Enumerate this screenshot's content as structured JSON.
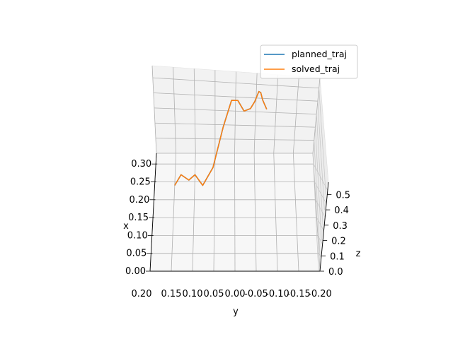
{
  "chart_data": {
    "type": "line",
    "projection": "3d",
    "title": "",
    "xlabel": "x",
    "ylabel": "y",
    "zlabel": "z",
    "x_ticks": [
      "0.00",
      "0.05",
      "0.10",
      "0.15",
      "0.20",
      "0.25",
      "0.30"
    ],
    "y_ticks": [
      "0.20",
      "0.15",
      "0.10",
      "0.05",
      "0.00",
      "-0.05",
      "-0.10",
      "-0.15",
      "-0.20"
    ],
    "z_ticks": [
      "0.0",
      "0.1",
      "0.2",
      "0.3",
      "0.4",
      "0.5"
    ],
    "xlim": [
      0.0,
      0.33
    ],
    "ylim": [
      0.2,
      -0.2
    ],
    "zlim": [
      0.0,
      0.58
    ],
    "grid": true,
    "legend_position": "top-right",
    "colors": {
      "planned_traj": "#1f77b4",
      "solved_traj": "#ff7f0e"
    },
    "series": [
      {
        "name": "planned_traj",
        "x": [
          0.24,
          0.27,
          0.255,
          0.27,
          0.24,
          0.29,
          0.315,
          0.32,
          0.305,
          0.28,
          0.28,
          0.285,
          0.31,
          0.315,
          0.31,
          0.3
        ],
        "y": [
          0.15,
          0.135,
          0.115,
          0.1,
          0.08,
          0.055,
          0.03,
          0.01,
          -0.005,
          -0.02,
          -0.035,
          -0.045,
          -0.055,
          -0.06,
          -0.065,
          -0.075
        ],
        "z": [
          0.0,
          0.0,
          0.0,
          0.0,
          0.0,
          0.0,
          0.22,
          0.4,
          0.44,
          0.43,
          0.45,
          0.49,
          0.5,
          0.48,
          0.44,
          0.4
        ]
      },
      {
        "name": "solved_traj",
        "x": [
          0.24,
          0.27,
          0.255,
          0.27,
          0.24,
          0.29,
          0.315,
          0.32,
          0.305,
          0.28,
          0.28,
          0.285,
          0.31,
          0.315,
          0.31,
          0.3
        ],
        "y": [
          0.15,
          0.135,
          0.115,
          0.1,
          0.08,
          0.055,
          0.03,
          0.01,
          -0.005,
          -0.02,
          -0.035,
          -0.045,
          -0.055,
          -0.06,
          -0.065,
          -0.075
        ],
        "z": [
          0.0,
          0.0,
          0.0,
          0.0,
          0.0,
          0.0,
          0.22,
          0.4,
          0.44,
          0.43,
          0.45,
          0.49,
          0.5,
          0.48,
          0.44,
          0.4
        ]
      }
    ]
  }
}
